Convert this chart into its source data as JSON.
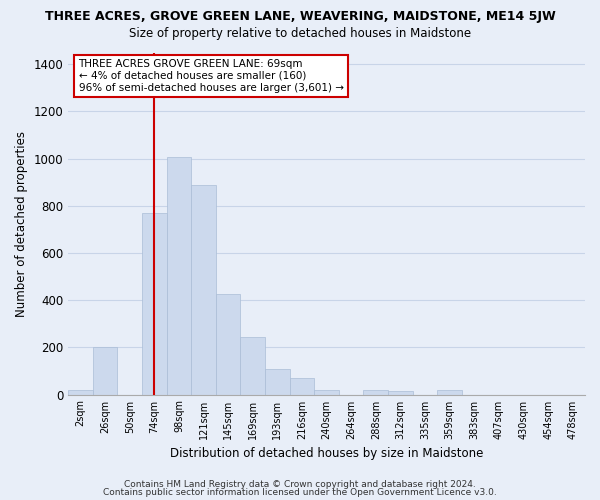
{
  "title": "THREE ACRES, GROVE GREEN LANE, WEAVERING, MAIDSTONE, ME14 5JW",
  "subtitle": "Size of property relative to detached houses in Maidstone",
  "xlabel": "Distribution of detached houses by size in Maidstone",
  "ylabel": "Number of detached properties",
  "bar_color": "#ccd9ed",
  "bar_edge_color": "#aabdd6",
  "grid_color": "#c8d4e8",
  "background_color": "#e8eef8",
  "bin_labels": [
    "2sqm",
    "26sqm",
    "50sqm",
    "74sqm",
    "98sqm",
    "121sqm",
    "145sqm",
    "169sqm",
    "193sqm",
    "216sqm",
    "240sqm",
    "264sqm",
    "288sqm",
    "312sqm",
    "335sqm",
    "359sqm",
    "383sqm",
    "407sqm",
    "430sqm",
    "454sqm",
    "478sqm"
  ],
  "bar_heights": [
    20,
    200,
    0,
    770,
    1005,
    890,
    425,
    245,
    110,
    70,
    20,
    0,
    20,
    15,
    0,
    20,
    0,
    0,
    0,
    0,
    0
  ],
  "vline_index": 3,
  "vline_color": "#cc0000",
  "ylim": [
    0,
    1450
  ],
  "yticks": [
    0,
    200,
    400,
    600,
    800,
    1000,
    1200,
    1400
  ],
  "annotation_title": "THREE ACRES GROVE GREEN LANE: 69sqm",
  "annotation_line1": "← 4% of detached houses are smaller (160)",
  "annotation_line2": "96% of semi-detached houses are larger (3,601) →",
  "annotation_box_color": "#ffffff",
  "annotation_border_color": "#cc0000",
  "footer1": "Contains HM Land Registry data © Crown copyright and database right 2024.",
  "footer2": "Contains public sector information licensed under the Open Government Licence v3.0."
}
